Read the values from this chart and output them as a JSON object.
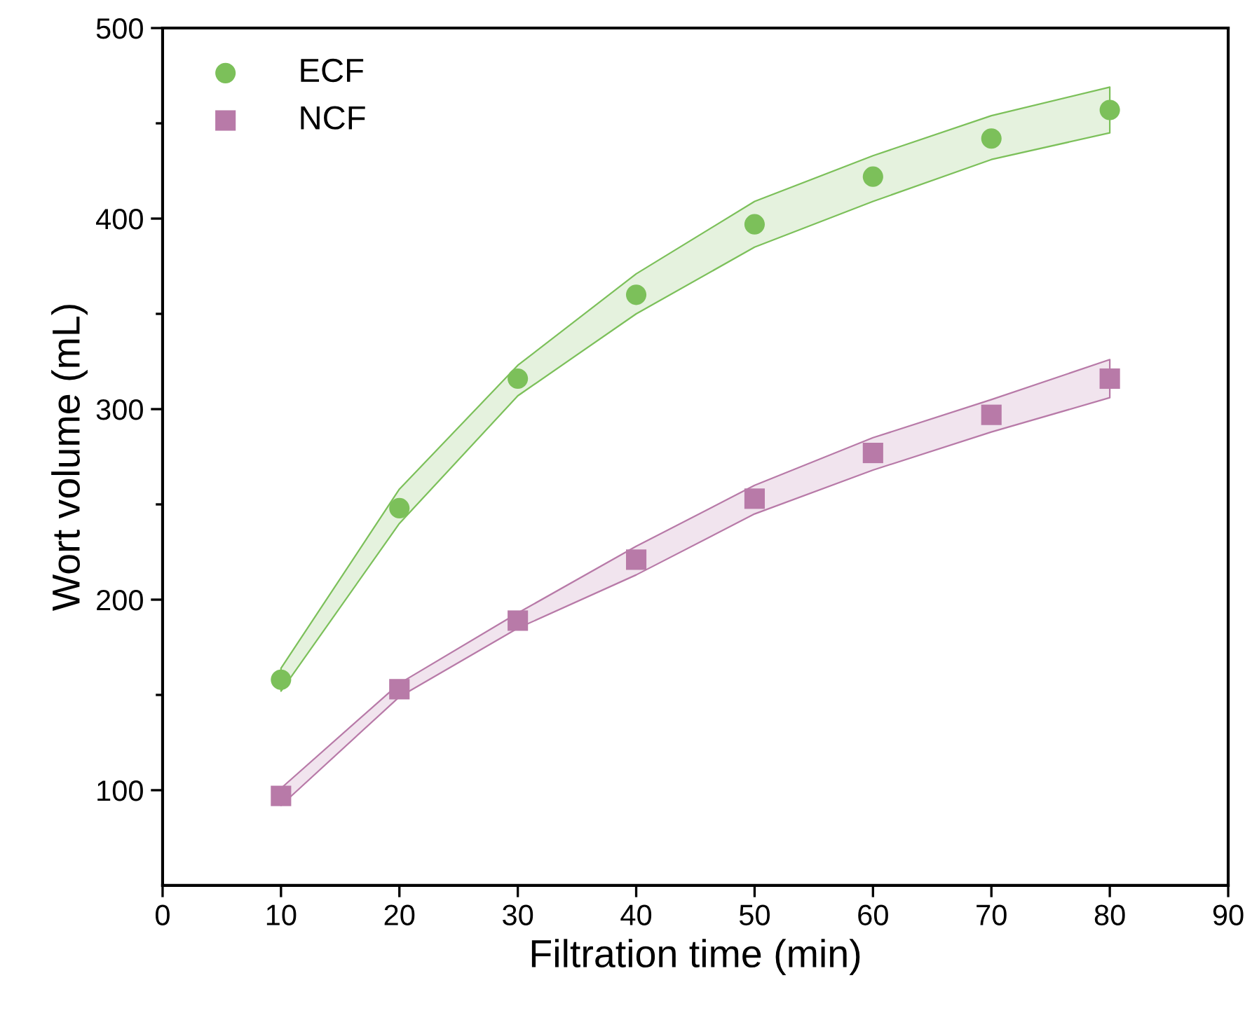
{
  "chart_data": {
    "type": "scatter",
    "xlabel": "Filtration time (min)",
    "ylabel": "Wort volume (mL)",
    "x": [
      10,
      20,
      30,
      40,
      50,
      60,
      70,
      80
    ],
    "series": [
      {
        "name": "ECF",
        "color": "#7cc05a",
        "marker": "circle",
        "values": [
          158,
          248,
          316,
          360,
          397,
          422,
          442,
          457
        ],
        "lower": [
          152,
          240,
          307,
          350,
          385,
          409,
          431,
          445
        ],
        "upper": [
          164,
          258,
          323,
          371,
          409,
          433,
          454,
          469
        ]
      },
      {
        "name": "NCF",
        "color": "#b87aa8",
        "marker": "square",
        "values": [
          97,
          153,
          189,
          221,
          253,
          277,
          297,
          316
        ],
        "lower": [
          92,
          149,
          185,
          213,
          245,
          268,
          288,
          306
        ],
        "upper": [
          101,
          156,
          193,
          228,
          260,
          285,
          305,
          326
        ]
      }
    ],
    "xlim": [
      0,
      90
    ],
    "ylim": [
      50,
      500
    ],
    "xticks": [
      0,
      10,
      20,
      30,
      40,
      50,
      60,
      70,
      80,
      90
    ],
    "yticks": [
      100,
      {
        "value": 150,
        "label": null
      },
      200,
      {
        "value": 250,
        "label": null
      },
      300,
      {
        "value": 350,
        "label": null
      },
      400,
      {
        "value": 450,
        "label": null
      },
      500
    ],
    "legend": "top left",
    "grid": false
  }
}
